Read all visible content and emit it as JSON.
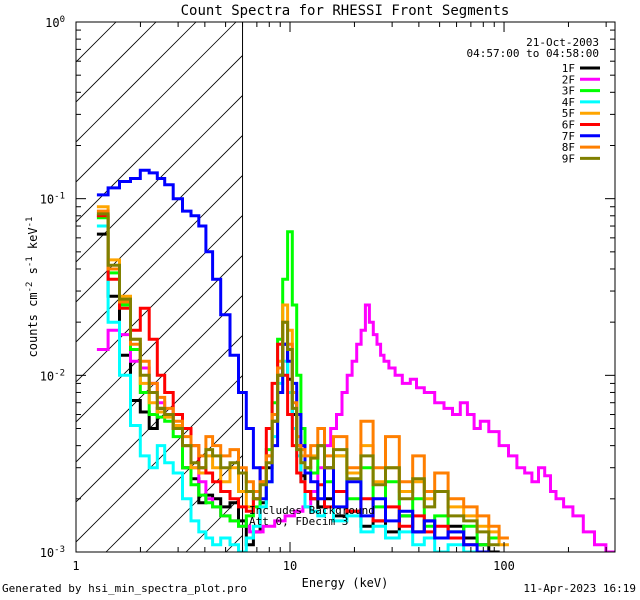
{
  "chart_data": {
    "type": "line",
    "title": "Count Spectra for RHESSI Front Segments",
    "xlabel": "Energy (keV)",
    "ylabel_parts": [
      "counts cm",
      "-2",
      " s",
      "-1",
      " keV",
      "-1"
    ],
    "xscale": "log",
    "yscale": "log",
    "xlim": [
      1.0,
      330
    ],
    "ylim": [
      0.001,
      1.0
    ],
    "x_ticks": [
      {
        "value": 1,
        "label": "1"
      },
      {
        "value": 10,
        "label": "10"
      },
      {
        "value": 100,
        "label": "100"
      }
    ],
    "y_ticks": [
      {
        "value": 0.001,
        "base": "10",
        "exp": "-3"
      },
      {
        "value": 0.01,
        "base": "10",
        "exp": "-2"
      },
      {
        "value": 0.1,
        "base": "10",
        "exp": "-1"
      },
      {
        "value": 1.0,
        "base": "10",
        "exp": "0"
      }
    ],
    "hatch_region": {
      "xmin": 1.0,
      "xmax": 6.0
    },
    "info": [
      "21-Oct-2003",
      "04:57:00 to 04:58:00"
    ],
    "annotation": [
      "Includes Background",
      "Att 0, FDecim 3"
    ],
    "legend_position": "top-right",
    "series": [
      {
        "name": "1F",
        "color": "#000000",
        "x": [
          1.33,
          1.5,
          1.7,
          1.9,
          2.1,
          2.3,
          2.5,
          2.7,
          3.0,
          3.3,
          3.6,
          3.9,
          4.2,
          4.5,
          5.0,
          5.5,
          6.0,
          6.5,
          7.0,
          7.5,
          8.0,
          8.5,
          9.0,
          9.5,
          10.0,
          10.5,
          11.0,
          11.5,
          12.0,
          13,
          14,
          15,
          17,
          20,
          23,
          26,
          30,
          35,
          40,
          45,
          50,
          60,
          70,
          80,
          90
        ],
        "y": [
          0.063,
          0.028,
          0.013,
          0.0072,
          0.0062,
          0.005,
          0.0065,
          0.006,
          0.005,
          0.003,
          0.0026,
          0.0019,
          0.0021,
          0.002,
          0.0018,
          0.0019,
          0.0015,
          0.0011,
          0.0013,
          0.0019,
          0.003,
          0.0055,
          0.01,
          0.015,
          0.0095,
          0.006,
          0.004,
          0.0027,
          0.0022,
          0.002,
          0.0018,
          0.002,
          0.0016,
          0.0017,
          0.0014,
          0.0015,
          0.0013,
          0.0016,
          0.0013,
          0.0015,
          0.0012,
          0.0014,
          0.0012,
          0.0011,
          0.001
        ]
      },
      {
        "name": "2F",
        "color": "#ff00ff",
        "x": [
          1.33,
          1.5,
          1.7,
          1.9,
          2.1,
          2.3,
          2.5,
          2.7,
          3.0,
          3.3,
          3.6,
          3.9,
          4.2,
          4.5,
          5.0,
          5.5,
          6.0,
          7,
          8,
          9,
          10,
          11,
          12,
          13,
          14,
          15,
          16,
          17,
          18,
          19,
          20,
          21,
          22,
          23,
          24,
          25,
          26,
          27,
          28,
          30,
          32,
          35,
          38,
          40,
          45,
          50,
          55,
          60,
          65,
          70,
          75,
          80,
          90,
          100,
          110,
          120,
          130,
          140,
          150,
          160,
          170,
          180,
          200,
          220,
          250,
          280,
          320
        ],
        "y": [
          0.014,
          0.018,
          0.017,
          0.012,
          0.011,
          0.009,
          0.007,
          0.006,
          0.005,
          0.004,
          0.003,
          0.0025,
          0.002,
          0.0018,
          0.0016,
          0.0015,
          0.0014,
          0.0013,
          0.0014,
          0.0015,
          0.0016,
          0.0017,
          0.0018,
          0.0022,
          0.003,
          0.004,
          0.005,
          0.006,
          0.008,
          0.01,
          0.012,
          0.015,
          0.018,
          0.025,
          0.02,
          0.017,
          0.015,
          0.013,
          0.012,
          0.011,
          0.01,
          0.009,
          0.0095,
          0.0085,
          0.008,
          0.007,
          0.0065,
          0.006,
          0.007,
          0.006,
          0.005,
          0.0055,
          0.0048,
          0.004,
          0.0035,
          0.003,
          0.0028,
          0.0025,
          0.003,
          0.0027,
          0.0022,
          0.002,
          0.0018,
          0.0016,
          0.0013,
          0.0011,
          0.001
        ]
      },
      {
        "name": "3F",
        "color": "#00ff00",
        "x": [
          1.33,
          1.5,
          1.7,
          1.9,
          2.1,
          2.3,
          2.5,
          2.7,
          3.0,
          3.3,
          3.6,
          3.9,
          4.2,
          4.5,
          5.0,
          5.5,
          6.0,
          6.5,
          7.0,
          7.5,
          8.0,
          8.5,
          9.0,
          9.5,
          10.0,
          10.5,
          11.0,
          11.5,
          12.0,
          13,
          14,
          15,
          17,
          20,
          23,
          26,
          30,
          35,
          40,
          45,
          50,
          60,
          70,
          80,
          90
        ],
        "y": [
          0.078,
          0.038,
          0.025,
          0.014,
          0.008,
          0.006,
          0.0058,
          0.0055,
          0.0045,
          0.003,
          0.0024,
          0.0021,
          0.0019,
          0.0018,
          0.0016,
          0.0015,
          0.0014,
          0.0016,
          0.0018,
          0.0025,
          0.0038,
          0.007,
          0.016,
          0.035,
          0.065,
          0.025,
          0.01,
          0.005,
          0.003,
          0.0028,
          0.004,
          0.0025,
          0.0035,
          0.002,
          0.003,
          0.0018,
          0.0025,
          0.0016,
          0.002,
          0.0014,
          0.0016,
          0.0013,
          0.0014,
          0.0011,
          0.0012
        ]
      },
      {
        "name": "4F",
        "color": "#00ffff",
        "x": [
          1.33,
          1.5,
          1.7,
          1.9,
          2.1,
          2.3,
          2.5,
          2.7,
          3.0,
          3.3,
          3.6,
          3.9,
          4.2,
          4.5,
          5.0,
          5.5,
          6.0,
          6.5,
          7.0,
          7.5,
          8.0,
          8.5,
          9.0,
          9.5,
          10.0,
          10.5,
          11.0,
          11.5,
          12.0,
          13,
          14,
          15,
          17,
          20,
          23,
          26,
          30,
          35,
          40,
          45,
          50,
          60,
          70
        ],
        "y": [
          0.07,
          0.02,
          0.01,
          0.0052,
          0.0035,
          0.003,
          0.004,
          0.0032,
          0.0028,
          0.002,
          0.0015,
          0.0013,
          0.0012,
          0.0011,
          0.0012,
          0.0011,
          0.001,
          0.0012,
          0.0014,
          0.0018,
          0.0025,
          0.0045,
          0.009,
          0.012,
          0.008,
          0.005,
          0.0035,
          0.0025,
          0.0018,
          0.0017,
          0.0016,
          0.0018,
          0.0015,
          0.0016,
          0.0013,
          0.0014,
          0.0012,
          0.0013,
          0.0011,
          0.0012,
          0.001,
          0.0011,
          0.001
        ]
      },
      {
        "name": "5F",
        "color": "#ffa500",
        "x": [
          1.33,
          1.5,
          1.7,
          1.9,
          2.1,
          2.3,
          2.5,
          2.7,
          3.0,
          3.3,
          3.6,
          3.9,
          4.2,
          4.5,
          5.0,
          5.5,
          6.0,
          6.5,
          7.0,
          7.5,
          8.0,
          8.5,
          9.0,
          9.5,
          10.0,
          10.5,
          11.0,
          11.5,
          12.0,
          13,
          14,
          15,
          17,
          20,
          23,
          26,
          30,
          35,
          40,
          45,
          50,
          60,
          70,
          80,
          90,
          100
        ],
        "y": [
          0.09,
          0.045,
          0.028,
          0.016,
          0.009,
          0.007,
          0.0062,
          0.0058,
          0.0052,
          0.004,
          0.003,
          0.0028,
          0.0035,
          0.003,
          0.0025,
          0.003,
          0.0022,
          0.0018,
          0.002,
          0.0025,
          0.0035,
          0.006,
          0.012,
          0.025,
          0.018,
          0.008,
          0.0045,
          0.0035,
          0.003,
          0.0035,
          0.004,
          0.003,
          0.0035,
          0.0028,
          0.004,
          0.0025,
          0.003,
          0.0022,
          0.0025,
          0.002,
          0.0022,
          0.0018,
          0.0016,
          0.0014,
          0.0013,
          0.0011
        ]
      },
      {
        "name": "6F",
        "color": "#ff0000",
        "x": [
          1.33,
          1.5,
          1.7,
          1.9,
          2.1,
          2.3,
          2.5,
          2.7,
          3.0,
          3.3,
          3.6,
          3.9,
          4.2,
          4.5,
          5.0,
          5.5,
          6.0,
          6.5,
          7.0,
          7.5,
          8.0,
          8.5,
          9.0,
          9.5,
          10.0,
          10.5,
          11.0,
          11.5,
          12.0,
          13,
          14,
          15,
          17,
          20,
          23,
          26,
          30,
          35,
          40,
          45,
          50,
          60,
          70
        ],
        "y": [
          0.08,
          0.035,
          0.024,
          0.018,
          0.024,
          0.016,
          0.01,
          0.008,
          0.006,
          0.005,
          0.004,
          0.003,
          0.0028,
          0.0025,
          0.0022,
          0.002,
          0.0018,
          0.0017,
          0.002,
          0.003,
          0.005,
          0.009,
          0.015,
          0.01,
          0.006,
          0.004,
          0.0028,
          0.0025,
          0.0022,
          0.002,
          0.0024,
          0.0018,
          0.0022,
          0.0017,
          0.002,
          0.0015,
          0.0018,
          0.0014,
          0.0016,
          0.0013,
          0.0014,
          0.0012,
          0.0011
        ]
      },
      {
        "name": "7F",
        "color": "#0000ff",
        "x": [
          1.33,
          1.5,
          1.7,
          1.9,
          2.1,
          2.3,
          2.5,
          2.7,
          3.0,
          3.3,
          3.6,
          3.9,
          4.2,
          4.5,
          5.0,
          5.5,
          6.0,
          6.5,
          7.0,
          7.5,
          8.0,
          8.5,
          9.0,
          9.5,
          10.0,
          10.5,
          11.0,
          11.5,
          12.0,
          13,
          14,
          15,
          17,
          20,
          23,
          26,
          30,
          35,
          40,
          45,
          50,
          60,
          70,
          80
        ],
        "y": [
          0.105,
          0.115,
          0.125,
          0.13,
          0.145,
          0.14,
          0.13,
          0.12,
          0.1,
          0.085,
          0.08,
          0.07,
          0.05,
          0.035,
          0.022,
          0.013,
          0.008,
          0.005,
          0.003,
          0.002,
          0.0025,
          0.004,
          0.008,
          0.015,
          0.012,
          0.009,
          0.006,
          0.004,
          0.0028,
          0.0025,
          0.002,
          0.003,
          0.0018,
          0.0025,
          0.0016,
          0.002,
          0.0015,
          0.0017,
          0.0013,
          0.0015,
          0.0012,
          0.0013,
          0.0011,
          0.001
        ]
      },
      {
        "name": "8F",
        "color": "#ff7f00",
        "x": [
          1.33,
          1.5,
          1.7,
          1.9,
          2.1,
          2.3,
          2.5,
          2.7,
          3.0,
          3.3,
          3.6,
          3.9,
          4.2,
          4.5,
          5.0,
          5.5,
          6.0,
          6.5,
          7.0,
          7.5,
          8.0,
          8.5,
          9.0,
          9.5,
          10.0,
          10.5,
          11.0,
          11.5,
          12.0,
          13,
          14,
          15,
          17,
          20,
          23,
          26,
          30,
          35,
          40,
          45,
          50,
          60,
          70,
          80,
          90,
          100
        ],
        "y": [
          0.085,
          0.04,
          0.026,
          0.015,
          0.012,
          0.009,
          0.0075,
          0.0065,
          0.0055,
          0.0045,
          0.004,
          0.0035,
          0.0045,
          0.004,
          0.0035,
          0.0038,
          0.003,
          0.0025,
          0.0022,
          0.0025,
          0.0035,
          0.006,
          0.011,
          0.02,
          0.015,
          0.007,
          0.004,
          0.0038,
          0.0035,
          0.004,
          0.005,
          0.0035,
          0.0045,
          0.003,
          0.0055,
          0.003,
          0.0045,
          0.0025,
          0.0035,
          0.0022,
          0.0028,
          0.002,
          0.0018,
          0.0016,
          0.0014,
          0.0012
        ]
      },
      {
        "name": "9F",
        "color": "#808000",
        "x": [
          1.33,
          1.5,
          1.7,
          1.9,
          2.1,
          2.3,
          2.5,
          2.7,
          3.0,
          3.3,
          3.6,
          3.9,
          4.2,
          4.5,
          5.0,
          5.5,
          6.0,
          6.5,
          7.0,
          7.5,
          8.0,
          8.5,
          9.0,
          9.5,
          10.0,
          10.5,
          11.0,
          11.5,
          12.0,
          13,
          14,
          15,
          17,
          20,
          23,
          26,
          30,
          35,
          40,
          45,
          50,
          60,
          70,
          80,
          90
        ],
        "y": [
          0.082,
          0.042,
          0.027,
          0.016,
          0.01,
          0.008,
          0.0065,
          0.006,
          0.005,
          0.004,
          0.0032,
          0.003,
          0.0038,
          0.0035,
          0.003,
          0.0032,
          0.0028,
          0.0022,
          0.002,
          0.0024,
          0.0032,
          0.0055,
          0.01,
          0.02,
          0.014,
          0.0065,
          0.0038,
          0.0032,
          0.003,
          0.0034,
          0.004,
          0.003,
          0.0038,
          0.0026,
          0.0035,
          0.0024,
          0.003,
          0.002,
          0.0026,
          0.0018,
          0.0022,
          0.0016,
          0.0015,
          0.0013,
          0.0011
        ]
      }
    ]
  },
  "footer": {
    "generated_by": "Generated by hsi_min_spectra_plot.pro",
    "date": "11-Apr-2023 16:19"
  }
}
